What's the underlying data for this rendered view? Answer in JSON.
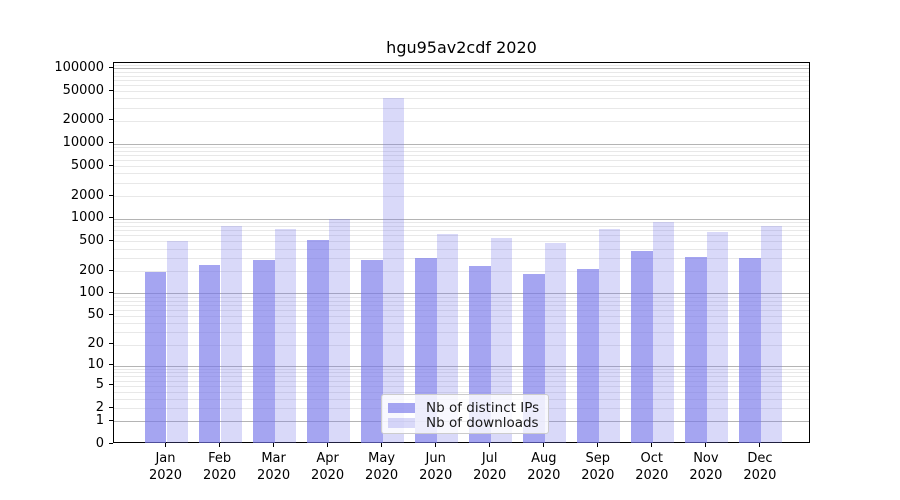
{
  "chart_data": {
    "type": "bar",
    "title": "hgu95av2cdf 2020",
    "categories": [
      "Jan",
      "Feb",
      "Mar",
      "Apr",
      "May",
      "Jun",
      "Jul",
      "Aug",
      "Sep",
      "Oct",
      "Nov",
      "Dec"
    ],
    "category_year": "2020",
    "series": [
      {
        "name": "Nb of distinct IPs",
        "color": "rgba(118,118,234,0.66)",
        "values": [
          192,
          240,
          280,
          515,
          280,
          300,
          233,
          180,
          210,
          370,
          312,
          298
        ]
      },
      {
        "name": "Nb of downloads",
        "color": "rgba(118,118,234,0.28)",
        "values": [
          510,
          800,
          735,
          1000,
          40600,
          630,
          560,
          475,
          720,
          915,
          670,
          790
        ]
      }
    ],
    "yscale": "log1p",
    "ylim": [
      0,
      118000
    ],
    "yticks": [
      0,
      1,
      2,
      5,
      10,
      20,
      50,
      100,
      200,
      500,
      1000,
      2000,
      5000,
      10000,
      20000,
      50000,
      100000
    ],
    "grid": true,
    "grid_major_color": "#b4b4b4",
    "grid_minor_color": "#e8e8e8",
    "legend_position": "lower center"
  }
}
